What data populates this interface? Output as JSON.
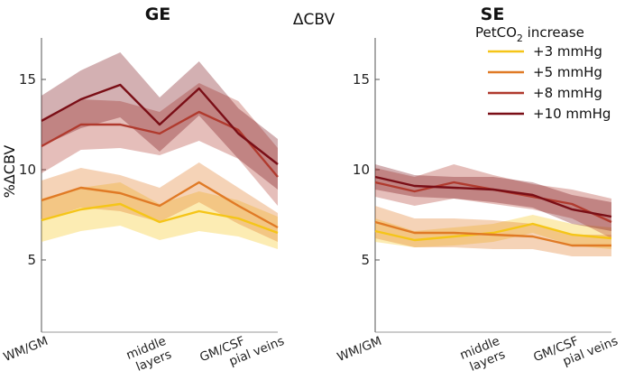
{
  "figure_title": "ΔCBV",
  "ylabel": "%ΔCBV",
  "legend": {
    "title_prefix": "PetCO",
    "title_sub": "2",
    "title_suffix": " increase",
    "entries": [
      {
        "label": "+3 mmHg",
        "color": "#F5C518"
      },
      {
        "label": "+5 mmHg",
        "color": "#E07A25"
      },
      {
        "label": "+8 mmHg",
        "color": "#B03A2E"
      },
      {
        "label": "+10 mmHg",
        "color": "#7A0E16"
      }
    ]
  },
  "chart_data": [
    {
      "type": "line",
      "title": "GE",
      "ylim": [
        1,
        17.3
      ],
      "yticks": [
        5,
        10,
        15
      ],
      "ytick_labels": [
        "5",
        "10",
        "15"
      ],
      "x": [
        0,
        1,
        2,
        3,
        4,
        5,
        6
      ],
      "xticks": [
        {
          "x": 0,
          "label": "WM/GM"
        },
        {
          "x": 3,
          "label": "middle\nlayers"
        },
        {
          "x": 5,
          "label": "GM/CSF"
        },
        {
          "x": 6,
          "label": "pial veins"
        }
      ],
      "series": [
        {
          "name": "+3 mmHg",
          "color": "#F5C518",
          "mean": [
            7.2,
            7.8,
            8.1,
            7.1,
            7.7,
            7.3,
            6.5
          ],
          "lower": [
            6.0,
            6.6,
            6.9,
            6.1,
            6.6,
            6.3,
            5.6
          ],
          "upper": [
            8.4,
            9.0,
            9.3,
            8.1,
            8.8,
            8.3,
            7.4
          ]
        },
        {
          "name": "+5 mmHg",
          "color": "#E07A25",
          "mean": [
            8.3,
            9.0,
            8.7,
            8.0,
            9.3,
            8.0,
            6.8
          ],
          "lower": [
            7.2,
            7.9,
            7.7,
            7.1,
            8.2,
            7.0,
            6.0
          ],
          "upper": [
            9.4,
            10.1,
            9.7,
            9.0,
            10.4,
            9.0,
            7.6
          ]
        },
        {
          "name": "+8 mmHg",
          "color": "#B03A2E",
          "mean": [
            11.3,
            12.5,
            12.5,
            12.0,
            13.2,
            12.2,
            9.6
          ],
          "lower": [
            9.8,
            11.1,
            11.2,
            10.8,
            11.6,
            10.6,
            8.0
          ],
          "upper": [
            12.8,
            13.9,
            13.8,
            13.2,
            14.8,
            13.8,
            11.2
          ]
        },
        {
          "name": "+10 mmHg",
          "color": "#7A0E16",
          "mean": [
            12.7,
            13.9,
            14.7,
            12.5,
            14.5,
            12.0,
            10.3
          ],
          "lower": [
            11.3,
            12.3,
            12.9,
            11.0,
            13.0,
            10.6,
            8.9
          ],
          "upper": [
            14.1,
            15.5,
            16.5,
            14.0,
            16.0,
            13.4,
            11.7
          ]
        }
      ]
    },
    {
      "type": "line",
      "title": "SE",
      "ylim": [
        1,
        17.3
      ],
      "yticks": [
        5,
        10,
        15
      ],
      "ytick_labels": [
        "5",
        "10",
        "15"
      ],
      "x": [
        0,
        1,
        2,
        3,
        4,
        5,
        6
      ],
      "xticks": [
        {
          "x": 0,
          "label": "WM/GM"
        },
        {
          "x": 3,
          "label": "middle\nlayers"
        },
        {
          "x": 5,
          "label": "GM/CSF"
        },
        {
          "x": 6,
          "label": "pial veins"
        }
      ],
      "series": [
        {
          "name": "+3 mmHg",
          "color": "#F5C518",
          "mean": [
            6.6,
            6.1,
            6.3,
            6.5,
            7.0,
            6.4,
            6.2
          ],
          "lower": [
            6.0,
            5.7,
            5.8,
            6.0,
            6.5,
            5.8,
            5.6
          ],
          "upper": [
            7.3,
            6.6,
            6.8,
            7.0,
            7.5,
            7.0,
            6.8
          ]
        },
        {
          "name": "+5 mmHg",
          "color": "#E07A25",
          "mean": [
            7.1,
            6.5,
            6.5,
            6.4,
            6.3,
            5.8,
            5.8
          ],
          "lower": [
            6.2,
            5.7,
            5.7,
            5.6,
            5.6,
            5.2,
            5.2
          ],
          "upper": [
            8.0,
            7.3,
            7.3,
            7.2,
            7.0,
            6.4,
            6.4
          ]
        },
        {
          "name": "+8 mmHg",
          "color": "#B03A2E",
          "mean": [
            9.3,
            8.8,
            9.3,
            8.9,
            8.5,
            8.1,
            7.1
          ],
          "lower": [
            8.5,
            8.0,
            8.4,
            8.1,
            7.8,
            7.3,
            6.2
          ],
          "upper": [
            10.1,
            9.6,
            10.3,
            9.7,
            9.2,
            8.9,
            8.4
          ]
        },
        {
          "name": "+10 mmHg",
          "color": "#7A0E16",
          "mean": [
            9.6,
            9.1,
            9.0,
            8.9,
            8.6,
            7.8,
            7.4
          ],
          "lower": [
            8.9,
            8.5,
            8.4,
            8.2,
            7.9,
            7.0,
            6.6
          ],
          "upper": [
            10.3,
            9.7,
            9.6,
            9.6,
            9.3,
            8.6,
            8.2
          ]
        }
      ]
    }
  ]
}
